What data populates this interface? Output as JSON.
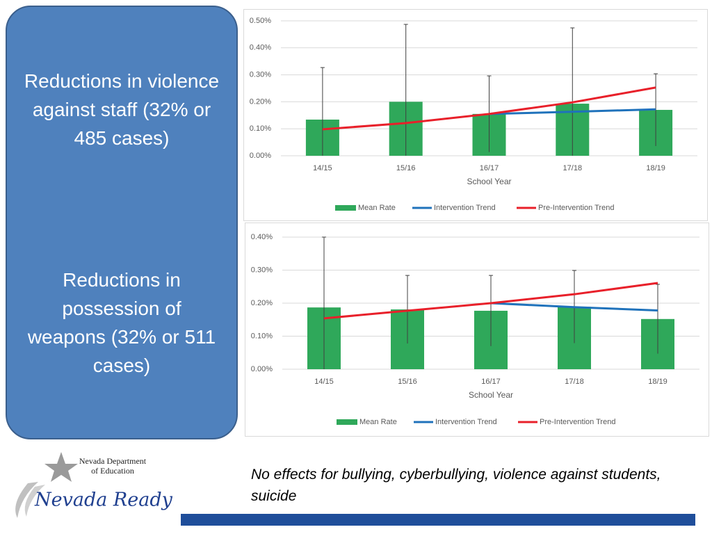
{
  "panels": [
    "Reductions in violence against staff (32% or 485 cases)",
    "Reductions in possession of weapons (32% or 511 cases)"
  ],
  "note": "No effects for bullying, cyberbullying, violence against students, suicide",
  "logo": {
    "line1": "Nevada Department",
    "line2": "of Education",
    "brand": "Nevada Ready!"
  },
  "chart_data": [
    {
      "type": "bar",
      "x_label": "School Year",
      "categories": [
        "14/15",
        "15/16",
        "16/17",
        "17/18",
        "18/19"
      ],
      "ylim": [
        0,
        0.5
      ],
      "yticks": [
        {
          "value": 0,
          "label": "0.00%"
        },
        {
          "value": 0.1,
          "label": "0.10%"
        },
        {
          "value": 0.2,
          "label": "0.20%"
        },
        {
          "value": 0.3,
          "label": "0.30%"
        },
        {
          "value": 0.4,
          "label": "0.40%"
        },
        {
          "value": 0.5,
          "label": "0.50%"
        }
      ],
      "grid": true,
      "legend": "bottom",
      "series": [
        {
          "name": "Mean Rate",
          "mark": "bar",
          "color": "#2fa85a",
          "values": [
            0.134,
            0.2,
            0.155,
            0.193,
            0.17
          ],
          "errors": [
            0.193,
            0.287,
            0.141,
            0.281,
            0.134
          ]
        },
        {
          "name": "Intervention Trend",
          "mark": "line",
          "color": "#1f72bb",
          "values": [
            null,
            null,
            0.155,
            0.163,
            0.172
          ]
        },
        {
          "name": "Pre-Intervention Trend",
          "mark": "line",
          "color": "#e8202a",
          "values": [
            0.098,
            0.121,
            0.155,
            0.198,
            0.253
          ]
        }
      ]
    },
    {
      "type": "bar",
      "x_label": "School Year",
      "categories": [
        "14/15",
        "15/16",
        "16/17",
        "17/18",
        "18/19"
      ],
      "ylim": [
        0,
        0.4
      ],
      "yticks": [
        {
          "value": 0,
          "label": "0.00%"
        },
        {
          "value": 0.1,
          "label": "0.10%"
        },
        {
          "value": 0.2,
          "label": "0.20%"
        },
        {
          "value": 0.3,
          "label": "0.30%"
        },
        {
          "value": 0.4,
          "label": "0.40%"
        }
      ],
      "grid": true,
      "legend": "bottom",
      "series": [
        {
          "name": "Mean Rate",
          "mark": "bar",
          "color": "#2fa85a",
          "values": [
            0.187,
            0.181,
            0.177,
            0.189,
            0.152
          ],
          "errors": [
            0.213,
            0.103,
            0.107,
            0.11,
            0.105
          ]
        },
        {
          "name": "Intervention Trend",
          "mark": "line",
          "color": "#1f72bb",
          "values": [
            null,
            null,
            0.2,
            0.188,
            0.178
          ]
        },
        {
          "name": "Pre-Intervention Trend",
          "mark": "line",
          "color": "#e8202a",
          "values": [
            0.154,
            0.177,
            0.2,
            0.227,
            0.261
          ]
        }
      ]
    }
  ]
}
